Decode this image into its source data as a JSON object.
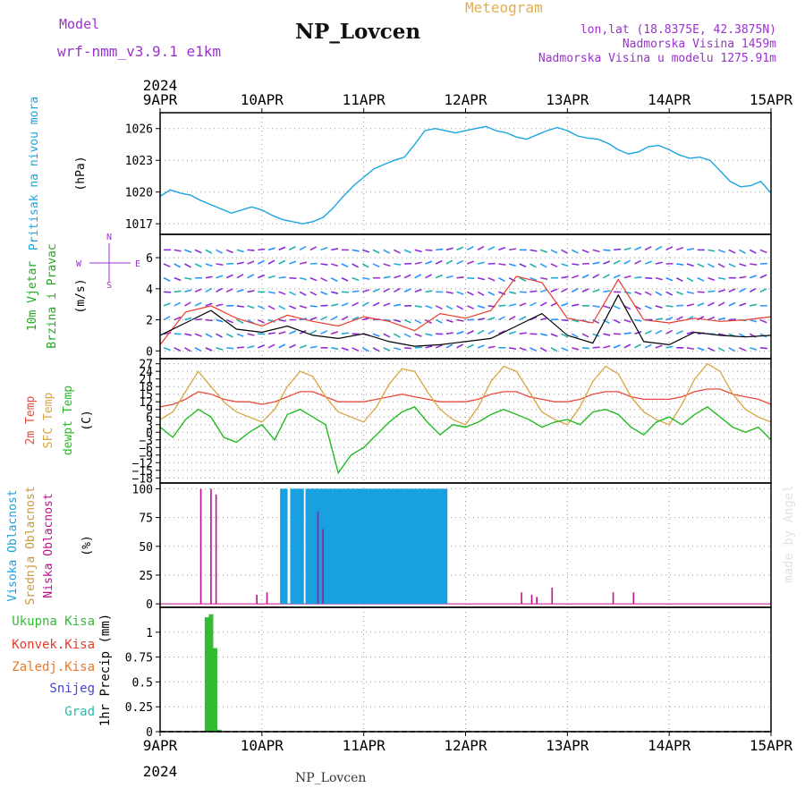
{
  "header": {
    "model_label": "Model",
    "model_name": "wrf-nmm_v3.9.1 e1km",
    "title": "NP_Lovcen",
    "subtitle": "Meteogram",
    "lonlat": "lon,lat (18.8375E, 42.3875N)",
    "elevation": "Nadmorska Visina 1459m",
    "elevation_model": "Nadmorska Visina u modelu 1275.91m",
    "footer_title": "NP_Lovcen",
    "credit": "made by Angel"
  },
  "time_axis": {
    "year": "2024",
    "labels": [
      "9APR",
      "10APR",
      "11APR",
      "12APR",
      "13APR",
      "14APR",
      "15APR"
    ]
  },
  "colors": {
    "pressure": "#1aa6e0",
    "wind_speed": "#000000",
    "wind_gust": "#e83a2c",
    "temp2m": "#e84a3c",
    "sfc_temp": "#d9a441",
    "dewpt": "#22bb22",
    "cloud_high": "#18a0e0",
    "cloud_mid": "#c89a3c",
    "cloud_low": "#c0108a",
    "precip_total": "#33bb33",
    "precip_conv": "#e83a2c",
    "precip_frozen": "#ee7722",
    "snow": "#4444dd",
    "hail": "#22bbaa",
    "label_purple": "#9933cc",
    "label_gold": "#e0b050"
  },
  "chart_data": [
    {
      "type": "line",
      "panel": "pressure",
      "ylabel_1": "Pritisak na nivou mora",
      "ylabel_2": "(hPa)",
      "ylim": [
        1016,
        1027.5
      ],
      "yticks": [
        1017,
        1020,
        1023,
        1026
      ],
      "x_unit": "days since 9APR 00UTC",
      "x": [
        0,
        0.1,
        0.2,
        0.3,
        0.4,
        0.5,
        0.6,
        0.7,
        0.8,
        0.9,
        1.0,
        1.1,
        1.2,
        1.3,
        1.4,
        1.5,
        1.6,
        1.7,
        1.8,
        1.9,
        2.0,
        2.1,
        2.2,
        2.3,
        2.4,
        2.5,
        2.6,
        2.7,
        2.8,
        2.9,
        3.0,
        3.1,
        3.2,
        3.3,
        3.4,
        3.5,
        3.6,
        3.7,
        3.8,
        3.9,
        4.0,
        4.1,
        4.2,
        4.3,
        4.4,
        4.5,
        4.6,
        4.7,
        4.8,
        4.9,
        5.0,
        5.1,
        5.2,
        5.3,
        5.4,
        5.5,
        5.6,
        5.7,
        5.8,
        5.9,
        6.0
      ],
      "series": [
        {
          "name": "SLP",
          "values": [
            1019.6,
            1020.2,
            1019.9,
            1019.7,
            1019.2,
            1018.8,
            1018.4,
            1018.0,
            1018.3,
            1018.6,
            1018.3,
            1017.8,
            1017.4,
            1017.2,
            1017.0,
            1017.2,
            1017.6,
            1018.5,
            1019.6,
            1020.6,
            1021.4,
            1022.2,
            1022.6,
            1023.0,
            1023.3,
            1024.5,
            1025.8,
            1026.0,
            1025.8,
            1025.6,
            1025.8,
            1026.0,
            1026.2,
            1025.8,
            1025.6,
            1025.2,
            1025.0,
            1025.4,
            1025.8,
            1026.1,
            1025.8,
            1025.3,
            1025.1,
            1025.0,
            1024.6,
            1024.0,
            1023.6,
            1023.8,
            1024.3,
            1024.4,
            1024.0,
            1023.5,
            1023.2,
            1023.3,
            1023.0,
            1022.0,
            1021.0,
            1020.5,
            1020.6,
            1021.0,
            1019.9
          ]
        }
      ]
    },
    {
      "type": "line",
      "panel": "wind",
      "ylabel_1": "10m Vjetar",
      "ylabel_2": "Brzina i Pravac",
      "ylabel_3": "(m/s)",
      "compass": {
        "n": "N",
        "s": "S",
        "e": "E",
        "w": "W"
      },
      "ylim": [
        -0.5,
        7.5
      ],
      "yticks": [
        0,
        2,
        4,
        6
      ],
      "x": [
        0,
        0.25,
        0.5,
        0.75,
        1.0,
        1.25,
        1.5,
        1.75,
        2.0,
        2.25,
        2.5,
        2.75,
        3.0,
        3.25,
        3.5,
        3.75,
        4.0,
        4.25,
        4.5,
        4.75,
        5.0,
        5.25,
        5.5,
        5.75,
        6.0
      ],
      "series": [
        {
          "name": "speed",
          "values": [
            1.0,
            1.8,
            2.6,
            1.4,
            1.2,
            1.6,
            1.0,
            0.8,
            1.1,
            0.6,
            0.3,
            0.4,
            0.6,
            0.8,
            1.6,
            2.4,
            1.0,
            0.5,
            3.6,
            0.6,
            0.4,
            1.2,
            1.0,
            0.9,
            1.0
          ]
        },
        {
          "name": "gust",
          "values": [
            0.4,
            2.5,
            2.9,
            2.1,
            1.6,
            2.3,
            1.9,
            1.6,
            2.2,
            1.9,
            1.3,
            2.4,
            2.1,
            2.6,
            4.8,
            4.4,
            2.1,
            1.8,
            4.6,
            2.0,
            1.8,
            2.1,
            1.9,
            2.0,
            2.2
          ]
        }
      ]
    },
    {
      "type": "line",
      "panel": "temperature",
      "ylabel_1": "2m Temp",
      "ylabel_2": "SFC Temp",
      "ylabel_3": "dewpt Temp",
      "ylabel_4": "(C)",
      "ylim": [
        -20,
        29
      ],
      "yticks": [
        -18,
        -15,
        -12,
        -9,
        -6,
        -3,
        0,
        3,
        6,
        9,
        12,
        15,
        18,
        21,
        24,
        27
      ],
      "x": [
        0,
        0.125,
        0.25,
        0.375,
        0.5,
        0.625,
        0.75,
        0.875,
        1.0,
        1.125,
        1.25,
        1.375,
        1.5,
        1.625,
        1.75,
        1.875,
        2.0,
        2.125,
        2.25,
        2.375,
        2.5,
        2.625,
        2.75,
        2.875,
        3.0,
        3.125,
        3.25,
        3.375,
        3.5,
        3.625,
        3.75,
        3.875,
        4.0,
        4.125,
        4.25,
        4.375,
        4.5,
        4.625,
        4.75,
        4.875,
        5.0,
        5.125,
        5.25,
        5.375,
        5.5,
        5.625,
        5.75,
        5.875,
        6.0
      ],
      "series": [
        {
          "name": "2m Temp",
          "values": [
            10,
            11,
            13,
            16,
            15,
            13,
            12,
            12,
            11,
            12,
            14,
            16,
            16,
            14,
            12,
            12,
            12,
            13,
            14,
            15,
            14,
            13,
            12,
            12,
            12,
            13,
            15,
            16,
            16,
            14,
            13,
            12,
            12,
            13,
            15,
            16,
            16,
            14,
            13,
            13,
            13,
            14,
            16,
            17,
            17,
            15,
            14,
            13,
            11
          ]
        },
        {
          "name": "SFC Temp",
          "values": [
            5,
            8,
            16,
            24,
            18,
            12,
            8,
            6,
            4,
            9,
            18,
            24,
            22,
            14,
            8,
            6,
            4,
            10,
            19,
            25,
            24,
            16,
            9,
            5,
            3,
            10,
            20,
            26,
            24,
            16,
            8,
            5,
            3,
            10,
            20,
            26,
            23,
            14,
            8,
            5,
            3,
            11,
            21,
            27,
            24,
            15,
            9,
            6,
            4
          ]
        },
        {
          "name": "dewpt Temp",
          "values": [
            2,
            -2,
            5,
            9,
            6,
            -2,
            -4,
            0,
            3,
            -3,
            7,
            9,
            6,
            3,
            -16,
            -9,
            -6,
            -1,
            4,
            8,
            10,
            4,
            -1,
            3,
            2,
            4,
            7,
            9,
            7,
            5,
            2,
            4,
            5,
            3,
            8,
            9,
            7,
            2,
            -1,
            4,
            6,
            3,
            7,
            10,
            6,
            2,
            0,
            2,
            -3
          ]
        }
      ]
    },
    {
      "type": "bar",
      "panel": "cloud",
      "ylabel_1": "Visoka Oblacnost",
      "ylabel_2": "Srednja Oblacnost",
      "ylabel_3": "Niska Oblacnost",
      "ylabel_4": "(%)",
      "ylim": [
        0,
        100
      ],
      "yticks": [
        0,
        25,
        50,
        75,
        100
      ],
      "series": [
        {
          "name": "Visoka Oblacnost",
          "x": [
            1.2,
            1.23,
            1.3,
            1.33,
            1.36,
            1.39,
            1.45,
            1.48,
            1.51,
            1.54,
            1.57,
            1.6,
            1.63,
            1.66,
            1.69,
            1.72,
            1.75,
            1.78,
            1.81,
            1.84,
            1.87,
            1.9,
            1.93,
            1.96,
            1.99,
            2.02,
            2.05,
            2.08,
            2.11,
            2.14,
            2.17,
            2.2,
            2.23,
            2.26,
            2.29,
            2.32,
            2.35,
            2.38,
            2.41,
            2.44,
            2.47,
            2.5,
            2.53,
            2.56,
            2.59,
            2.62,
            2.65,
            2.68,
            2.71,
            2.74,
            2.77,
            2.8
          ],
          "values": [
            100,
            100,
            100,
            100,
            100,
            100,
            100,
            100,
            100,
            100,
            100,
            100,
            100,
            100,
            100,
            100,
            100,
            100,
            100,
            100,
            100,
            100,
            100,
            100,
            100,
            100,
            100,
            100,
            100,
            100,
            100,
            100,
            100,
            100,
            100,
            100,
            100,
            100,
            100,
            100,
            100,
            100,
            100,
            100,
            100,
            100,
            100,
            100,
            100,
            100,
            100,
            100
          ]
        },
        {
          "name": "Niska Oblacnost",
          "x": [
            0.4,
            0.5,
            0.55,
            0.95,
            1.05,
            1.55,
            1.6,
            3.55,
            3.65,
            3.7,
            3.85,
            4.45,
            4.65
          ],
          "values": [
            100,
            100,
            95,
            8,
            10,
            80,
            65,
            10,
            8,
            6,
            14,
            10,
            10
          ]
        }
      ]
    },
    {
      "type": "bar",
      "panel": "precip",
      "legend": [
        "Ukupna Kisa",
        "Konvek.Kisa",
        "Zaledj.Kisa",
        "Snijeg",
        "Grad"
      ],
      "ylabel": "1hr Precip (mm)",
      "ylim": [
        0,
        1.25
      ],
      "yticks": [
        0,
        0.25,
        0.5,
        0.75,
        1
      ],
      "series": [
        {
          "name": "Ukupna Kisa",
          "x": [
            0.46,
            0.5,
            0.54,
            0.58
          ],
          "values": [
            1.15,
            1.18,
            0.84,
            0.02
          ]
        }
      ]
    }
  ]
}
